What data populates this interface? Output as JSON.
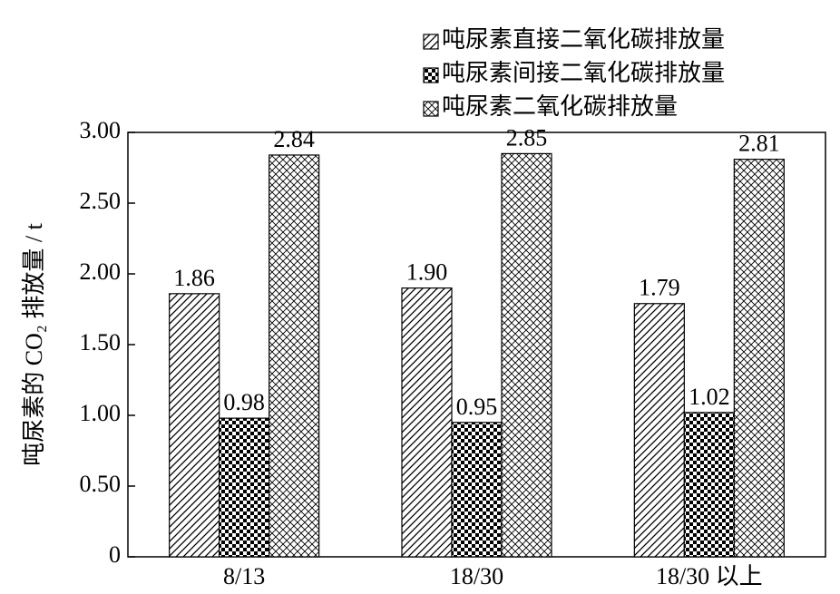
{
  "chart_data": {
    "type": "bar",
    "y_label": "吨尿素的 CO₂ 排放量 / t",
    "categories": [
      "8/13",
      "18/30",
      "18/30 以上"
    ],
    "series": [
      {
        "name": "吨尿素直接二氧化碳排放量",
        "color": "#000000",
        "pattern": "diagonal",
        "values": [
          1.86,
          1.9,
          1.79
        ],
        "value_labels": [
          "1.86",
          "1.90",
          "1.79"
        ]
      },
      {
        "name": "吨尿素间接二氧化碳排放量",
        "color": "#000000",
        "pattern": "dots",
        "values": [
          0.98,
          0.95,
          1.02
        ]
      },
      {
        "name": "吨尿素二氧化碳排放量",
        "color": "#000000",
        "pattern": "cross",
        "values": [
          2.84,
          2.85,
          2.81
        ]
      }
    ],
    "ylim": [
      0,
      3
    ],
    "yticks": [
      0,
      {
        "value": 0.5,
        "label": "0.50"
      },
      {
        "value": 1,
        "label": "1.00"
      },
      {
        "value": 1.5,
        "label": "1.50"
      },
      {
        "value": 2,
        "label": "2.00"
      },
      {
        "value": 2.5,
        "label": "2.50"
      },
      {
        "value": 3,
        "label": "3.00"
      }
    ],
    "legend": "top-right"
  }
}
